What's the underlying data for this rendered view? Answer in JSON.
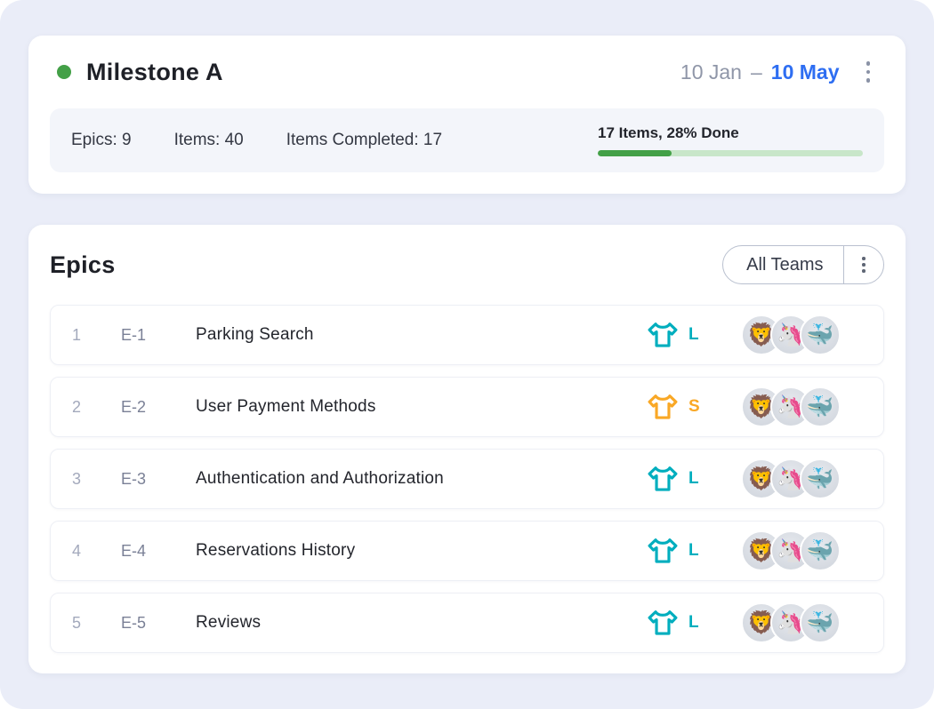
{
  "page": {
    "background": "#EAEDF8"
  },
  "milestone": {
    "title": "Milestone A",
    "status_color": "#43A047",
    "date_start": "10 Jan",
    "date_separator": "–",
    "date_end": "10 May",
    "date_end_color": "#2E6EF2",
    "stats": [
      "Epics: 9",
      "Items: 40",
      "Items Completed: 17"
    ],
    "progress": {
      "label": "17 Items, 28% Done",
      "percent": 28,
      "percent_css": "28%",
      "fill_color": "#43A047",
      "track_color": "#C8E6C9"
    }
  },
  "epics": {
    "heading": "Epics",
    "filter_button": {
      "label": "All Teams"
    },
    "rows": [
      {
        "num": "1",
        "code": "E-1",
        "name": "Parking Search",
        "size": "L",
        "size_color": "#00AEBE",
        "avatars": [
          {
            "emoji": "🦁",
            "label": "lion"
          },
          {
            "emoji": "🦄",
            "label": "unicorn"
          },
          {
            "emoji": "🐳",
            "label": "whale"
          }
        ]
      },
      {
        "num": "2",
        "code": "E-2",
        "name": "User Payment Methods",
        "size": "S",
        "size_color": "#F9A826",
        "avatars": [
          {
            "emoji": "🦁",
            "label": "lion"
          },
          {
            "emoji": "🦄",
            "label": "unicorn"
          },
          {
            "emoji": "🐳",
            "label": "whale"
          }
        ]
      },
      {
        "num": "3",
        "code": "E-3",
        "name": "Authentication and Authorization",
        "size": "L",
        "size_color": "#00AEBE",
        "avatars": [
          {
            "emoji": "🦁",
            "label": "lion"
          },
          {
            "emoji": "🦄",
            "label": "unicorn"
          },
          {
            "emoji": "🐳",
            "label": "whale"
          }
        ]
      },
      {
        "num": "4",
        "code": "E-4",
        "name": "Reservations History",
        "size": "L",
        "size_color": "#00AEBE",
        "avatars": [
          {
            "emoji": "🦁",
            "label": "lion"
          },
          {
            "emoji": "🦄",
            "label": "unicorn"
          },
          {
            "emoji": "🐳",
            "label": "whale"
          }
        ]
      },
      {
        "num": "5",
        "code": "E-5",
        "name": "Reviews",
        "size": "L",
        "size_color": "#00AEBE",
        "avatars": [
          {
            "emoji": "🦁",
            "label": "lion"
          },
          {
            "emoji": "🦄",
            "label": "unicorn"
          },
          {
            "emoji": "🐳",
            "label": "whale"
          }
        ]
      }
    ]
  }
}
